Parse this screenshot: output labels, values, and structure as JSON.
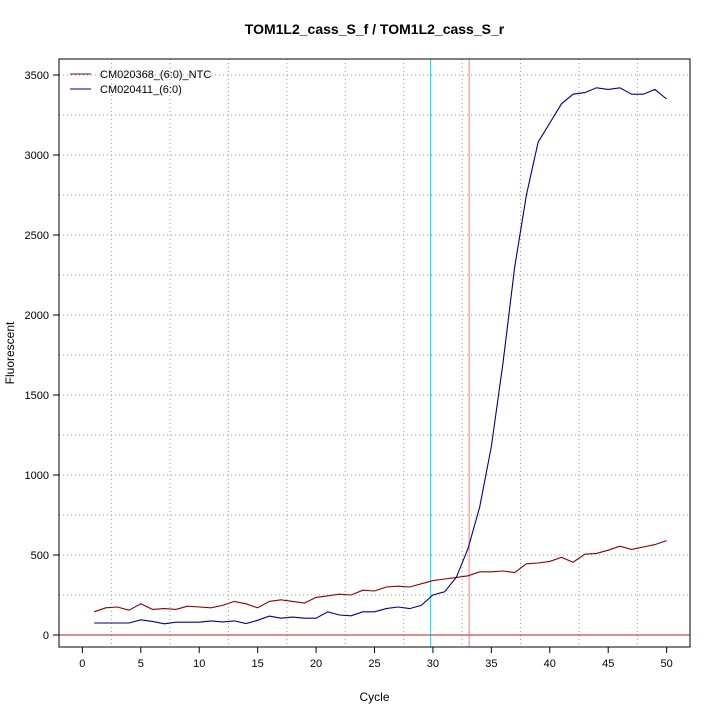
{
  "chart_data": {
    "type": "line",
    "title": "TOM1L2_cass_S_f / TOM1L2_cass_S_r",
    "xlabel": "Cycle",
    "ylabel": "Fluorescent",
    "xlim": [
      -2,
      52
    ],
    "ylim": [
      -75,
      3600
    ],
    "x_ticks": [
      0,
      5,
      10,
      15,
      20,
      25,
      30,
      35,
      40,
      45,
      50
    ],
    "y_ticks": [
      0,
      500,
      1000,
      1500,
      2000,
      2500,
      3000,
      3500
    ],
    "grid": true,
    "legend_position": "top-left",
    "series": [
      {
        "name": "CM020368_(6:0)_NTC",
        "color": "#8b0000",
        "x": [
          1,
          2,
          3,
          4,
          5,
          6,
          7,
          8,
          9,
          10,
          11,
          12,
          13,
          14,
          15,
          16,
          17,
          18,
          19,
          20,
          21,
          22,
          23,
          24,
          25,
          26,
          27,
          28,
          29,
          30,
          31,
          32,
          33,
          34,
          35,
          36,
          37,
          38,
          39,
          40,
          41,
          42,
          43,
          44,
          45,
          46,
          47,
          48,
          49,
          50
        ],
        "values": [
          145,
          170,
          175,
          155,
          195,
          160,
          165,
          160,
          180,
          175,
          170,
          185,
          210,
          195,
          170,
          210,
          220,
          210,
          200,
          235,
          245,
          255,
          250,
          280,
          275,
          300,
          305,
          300,
          320,
          340,
          350,
          360,
          370,
          395,
          395,
          400,
          390,
          445,
          450,
          460,
          485,
          455,
          505,
          510,
          530,
          555,
          535,
          550,
          565,
          590
        ]
      },
      {
        "name": "CM020411_(6:0)",
        "color": "#00008b",
        "x": [
          1,
          2,
          3,
          4,
          5,
          6,
          7,
          8,
          9,
          10,
          11,
          12,
          13,
          14,
          15,
          16,
          17,
          18,
          19,
          20,
          21,
          22,
          23,
          24,
          25,
          26,
          27,
          28,
          29,
          30,
          31,
          32,
          33,
          34,
          35,
          36,
          37,
          38,
          39,
          40,
          41,
          42,
          43,
          44,
          45,
          46,
          47,
          48,
          49,
          50
        ],
        "values": [
          75,
          75,
          75,
          75,
          95,
          85,
          70,
          80,
          80,
          80,
          88,
          82,
          88,
          72,
          92,
          118,
          105,
          112,
          105,
          105,
          145,
          125,
          120,
          145,
          145,
          165,
          175,
          165,
          185,
          250,
          270,
          360,
          540,
          800,
          1180,
          1700,
          2300,
          2750,
          3080,
          3200,
          3320,
          3380,
          3390,
          3420,
          3410,
          3420,
          3380,
          3380,
          3410,
          3350
        ]
      }
    ],
    "reference_lines": [
      {
        "x": 29.8,
        "color": "#00e5ff"
      },
      {
        "x": 33.1,
        "color": "#f08080"
      },
      {
        "y": 0,
        "color": "#b22222"
      }
    ]
  }
}
